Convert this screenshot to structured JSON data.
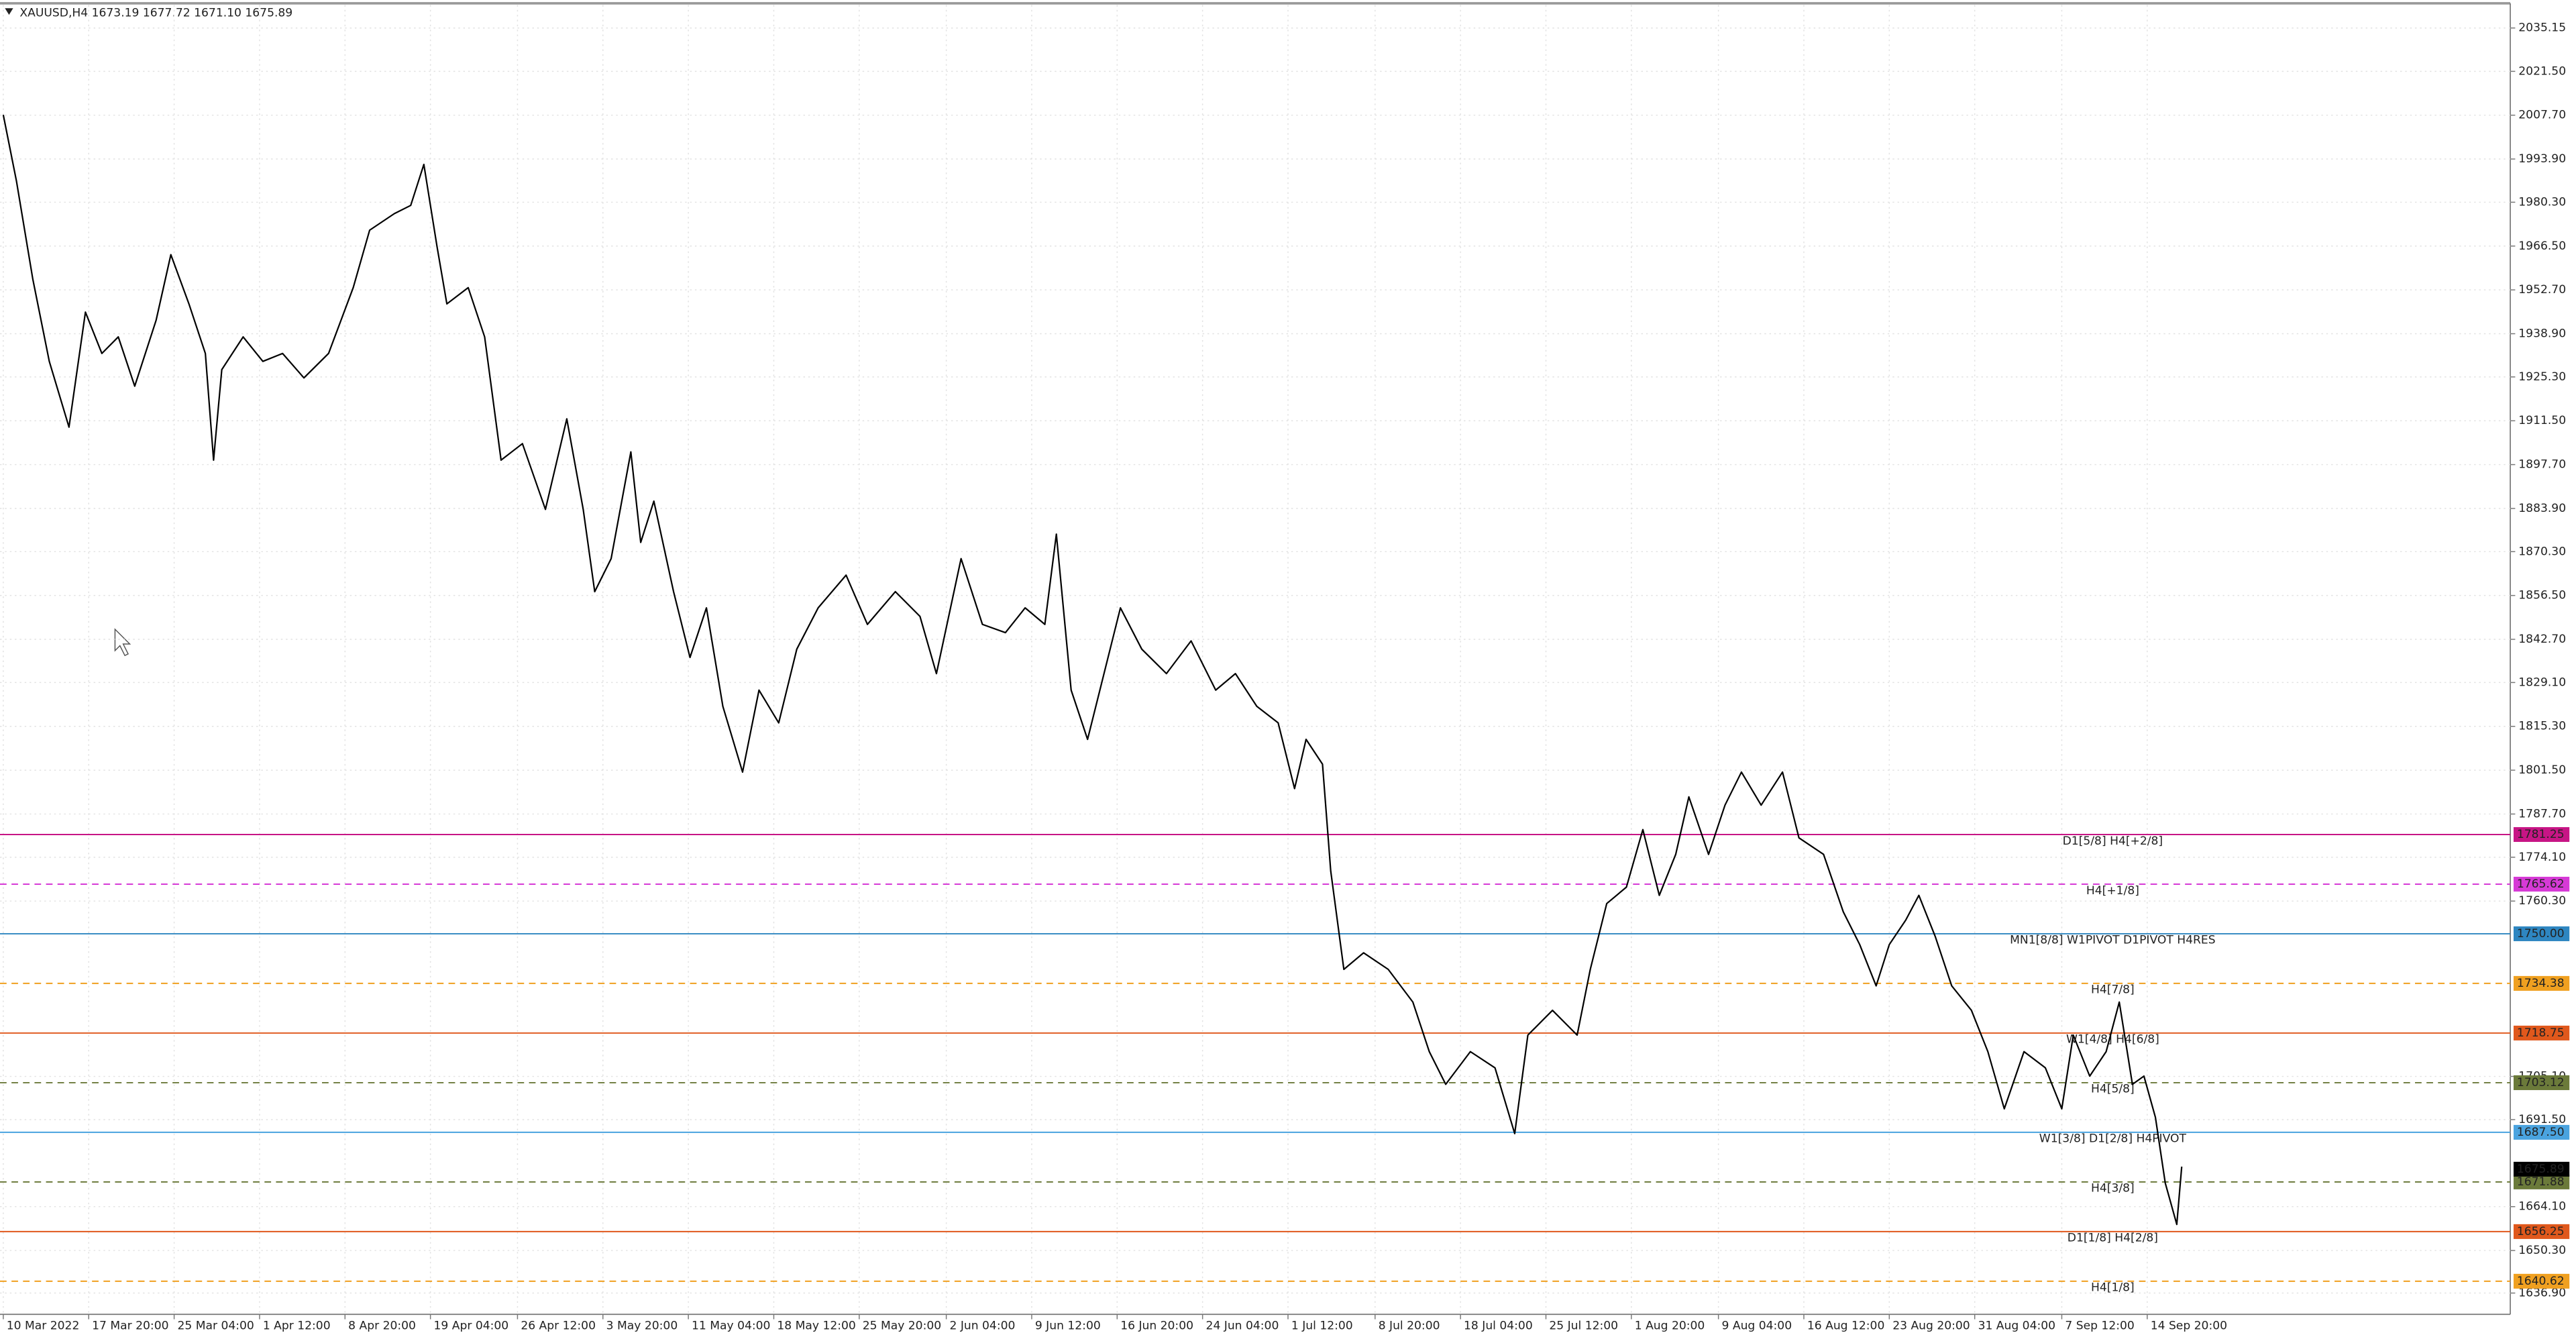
{
  "chart_data": {
    "type": "line",
    "title": "XAUUSD,H4  1673.19 1677.72 1671.10 1675.89",
    "color": "#000000",
    "grid": true,
    "xlim": [
      -2,
      1526
    ],
    "ylim": [
      1630.2,
      2042.4
    ],
    "xticks": [
      {
        "value": 0,
        "label": "10 Mar 2022"
      },
      {
        "value": 52,
        "label": "17 Mar 20:00"
      },
      {
        "value": 104,
        "label": "25 Mar 04:00"
      },
      {
        "value": 156,
        "label": "1 Apr 12:00"
      },
      {
        "value": 208,
        "label": "8 Apr 20:00"
      },
      {
        "value": 260,
        "label": "19 Apr 04:00"
      },
      {
        "value": 313,
        "label": "26 Apr 12:00"
      },
      {
        "value": 365,
        "label": "3 May 20:00"
      },
      {
        "value": 417,
        "label": "11 May 04:00"
      },
      {
        "value": 469,
        "label": "18 May 12:00"
      },
      {
        "value": 521,
        "label": "25 May 20:00"
      },
      {
        "value": 574,
        "label": "2 Jun 04:00"
      },
      {
        "value": 626,
        "label": "9 Jun 12:00"
      },
      {
        "value": 678,
        "label": "16 Jun 20:00"
      },
      {
        "value": 730,
        "label": "24 Jun 04:00"
      },
      {
        "value": 782,
        "label": "1 Jul 12:00"
      },
      {
        "value": 835,
        "label": "8 Jul 20:00"
      },
      {
        "value": 887,
        "label": "18 Jul 04:00"
      },
      {
        "value": 939,
        "label": "25 Jul 12:00"
      },
      {
        "value": 991,
        "label": "1 Aug 20:00"
      },
      {
        "value": 1044,
        "label": "9 Aug 04:00"
      },
      {
        "value": 1096,
        "label": "16 Aug 12:00"
      },
      {
        "value": 1148,
        "label": "23 Aug 20:00"
      },
      {
        "value": 1200,
        "label": "31 Aug 04:00"
      },
      {
        "value": 1253,
        "label": "7 Sep 12:00"
      },
      {
        "value": 1305,
        "label": "14 Sep 20:00"
      }
    ],
    "yticks": [
      {
        "value": 2035.15,
        "label": "2035.15"
      },
      {
        "value": 2021.5,
        "label": "2021.50"
      },
      {
        "value": 2007.7,
        "label": "2007.70"
      },
      {
        "value": 1993.9,
        "label": "1993.90"
      },
      {
        "value": 1980.3,
        "label": "1980.30"
      },
      {
        "value": 1966.5,
        "label": "1966.50"
      },
      {
        "value": 1952.7,
        "label": "1952.70"
      },
      {
        "value": 1938.9,
        "label": "1938.90"
      },
      {
        "value": 1925.3,
        "label": "1925.30"
      },
      {
        "value": 1911.5,
        "label": "1911.50"
      },
      {
        "value": 1897.7,
        "label": "1897.70"
      },
      {
        "value": 1883.9,
        "label": "1883.90"
      },
      {
        "value": 1870.3,
        "label": "1870.30"
      },
      {
        "value": 1856.5,
        "label": "1856.50"
      },
      {
        "value": 1842.7,
        "label": "1842.70"
      },
      {
        "value": 1829.1,
        "label": "1829.10"
      },
      {
        "value": 1815.3,
        "label": "1815.30"
      },
      {
        "value": 1801.5,
        "label": "1801.50"
      },
      {
        "value": 1787.7,
        "label": "1787.70"
      },
      {
        "value": 1774.1,
        "label": "1774.10"
      },
      {
        "value": 1760.3,
        "label": "1760.30"
      },
      {
        "value": 1705.1,
        "label": "1705.10"
      },
      {
        "value": 1691.5,
        "label": "1691.50"
      },
      {
        "value": 1664.1,
        "label": "1664.10"
      },
      {
        "value": 1650.3,
        "label": "1650.30"
      },
      {
        "value": 1636.9,
        "label": "1636.90"
      }
    ],
    "x": [
      0,
      8,
      18,
      28,
      40,
      50,
      60,
      70,
      80,
      93,
      102,
      113,
      123,
      128,
      133,
      146,
      158,
      170,
      183,
      198,
      213,
      223,
      238,
      248,
      256,
      264,
      270,
      283,
      293,
      303,
      316,
      330,
      343,
      353,
      360,
      370,
      382,
      388,
      396,
      408,
      418,
      428,
      438,
      450,
      460,
      472,
      483,
      496,
      513,
      526,
      543,
      558,
      568,
      583,
      596,
      610,
      622,
      634,
      641,
      650,
      660,
      670,
      680,
      693,
      708,
      723,
      738,
      750,
      763,
      776,
      786,
      793,
      803,
      808,
      816,
      828,
      843,
      858,
      868,
      878,
      893,
      908,
      920,
      928,
      943,
      958,
      966,
      976,
      988,
      998,
      1008,
      1018,
      1026,
      1038,
      1048,
      1058,
      1070,
      1083,
      1093,
      1108,
      1120,
      1130,
      1140,
      1148,
      1158,
      1166,
      1176,
      1186,
      1198,
      1208,
      1218,
      1230,
      1243,
      1253,
      1260,
      1270,
      1280,
      1288,
      1296,
      1303,
      1310,
      1316,
      1323,
      1326
    ],
    "values": [
      2007.8,
      1987,
      1956,
      1930.2,
      1909.5,
      1945.7,
      1932.7,
      1937.9,
      1922.4,
      1943.1,
      1963.8,
      1948.3,
      1932.7,
      1899.1,
      1927.6,
      1937.9,
      1930.2,
      1932.7,
      1925,
      1932.7,
      1953.4,
      1971.5,
      1976.7,
      1979.3,
      1992.2,
      1966.4,
      1948.3,
      1953.4,
      1937.9,
      1899.1,
      1904.3,
      1883.6,
      1912.1,
      1883.6,
      1857.7,
      1868.1,
      1901.7,
      1873.2,
      1886.2,
      1857.7,
      1837,
      1852.6,
      1821.6,
      1800.9,
      1826.7,
      1816.4,
      1839.6,
      1852.6,
      1862.9,
      1847.4,
      1857.7,
      1849.9,
      1831.9,
      1868.1,
      1847.4,
      1844.8,
      1852.6,
      1847.4,
      1875.8,
      1826.7,
      1811.2,
      1831.9,
      1852.6,
      1839.6,
      1831.9,
      1842.2,
      1826.7,
      1831.9,
      1821.6,
      1816.4,
      1795.7,
      1811.2,
      1803.4,
      1769.8,
      1738.8,
      1744,
      1738.8,
      1728.5,
      1712.9,
      1702.6,
      1712.9,
      1707.8,
      1687.1,
      1718.1,
      1725.9,
      1718.1,
      1738.8,
      1759.5,
      1764.7,
      1782.8,
      1762.1,
      1775,
      1793.1,
      1775,
      1790.5,
      1800.9,
      1790.5,
      1800.9,
      1780.2,
      1775,
      1756.9,
      1746.6,
      1733.6,
      1746.6,
      1754.3,
      1762.1,
      1749.1,
      1733.6,
      1725.9,
      1712.9,
      1694.9,
      1712.9,
      1707.8,
      1694.9,
      1718.1,
      1705.2,
      1712.9,
      1728.5,
      1702.6,
      1705.2,
      1692.2,
      1671.5,
      1658.5,
      1676.7
    ],
    "levels": [
      {
        "value": 1781.25,
        "label": "1781.25",
        "text": "D1[5/8] H4[+2/8]",
        "color": "#c71585",
        "dashed": false
      },
      {
        "value": 1765.62,
        "label": "1765.62",
        "text": "H4[+1/8]",
        "color": "#d63ad6",
        "dashed": true
      },
      {
        "value": 1750,
        "label": "1750.00",
        "text": "MN1[8/8] W1PIVOT D1PIVOT H4RES",
        "color": "#2e86c1",
        "dashed": false
      },
      {
        "value": 1734.38,
        "label": "1734.38",
        "text": "H4[7/8]",
        "color": "#f0a020",
        "dashed": true
      },
      {
        "value": 1718.75,
        "label": "1718.75",
        "text": "W1[4/8] H4[6/8]",
        "color": "#e0581c",
        "dashed": false
      },
      {
        "value": 1703.12,
        "label": "1703.12",
        "text": "H4[5/8]",
        "color": "#6b7a3a",
        "dashed": true
      },
      {
        "value": 1687.5,
        "label": "1687.50",
        "text": "W1[3/8] D1[2/8] H4PIVOT",
        "color": "#4aa3df",
        "dashed": false
      },
      {
        "value": 1671.88,
        "label": "1671.88",
        "text": "H4[3/8]",
        "color": "#6b7a3a",
        "dashed": true
      },
      {
        "value": 1656.25,
        "label": "1656.25",
        "text": "D1[1/8] H4[2/8]",
        "color": "#e0581c",
        "dashed": false
      },
      {
        "value": 1640.62,
        "label": "1640.62",
        "text": "H4[1/8]",
        "color": "#f0a020",
        "dashed": true
      }
    ],
    "last_price": {
      "value": 1675.89,
      "label": "1675.89",
      "color": "#000000"
    }
  }
}
